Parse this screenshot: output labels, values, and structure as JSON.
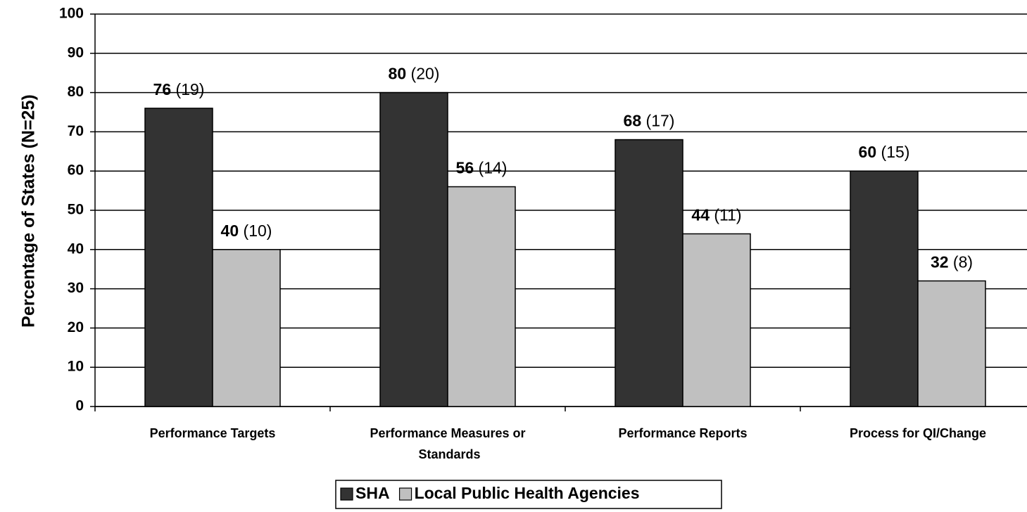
{
  "chart_data": {
    "type": "bar",
    "y_label": "Percentage of States (N=25)",
    "categories": [
      "Performance Targets",
      "Performance Measures or Standards",
      "Performance Reports",
      "Process for QI/Change"
    ],
    "series": [
      {
        "name": "SHA",
        "color": "#333333",
        "values": [
          76,
          80,
          68,
          60
        ],
        "value_labels": [
          "76 (19)",
          "80 (20)",
          "68 (17)",
          "60 (15)"
        ]
      },
      {
        "name": "Local Public Health Agencies",
        "color": "#c0c0c0",
        "values": [
          40,
          56,
          44,
          32
        ],
        "value_labels": [
          "40 (10)",
          "56 (14)",
          "44 (11)",
          "32 (8)"
        ]
      }
    ],
    "ylim": [
      0,
      100
    ],
    "yticks": [
      0,
      10,
      20,
      30,
      40,
      50,
      60,
      70,
      80,
      90,
      100
    ],
    "grid": true,
    "legend": "bottom"
  }
}
